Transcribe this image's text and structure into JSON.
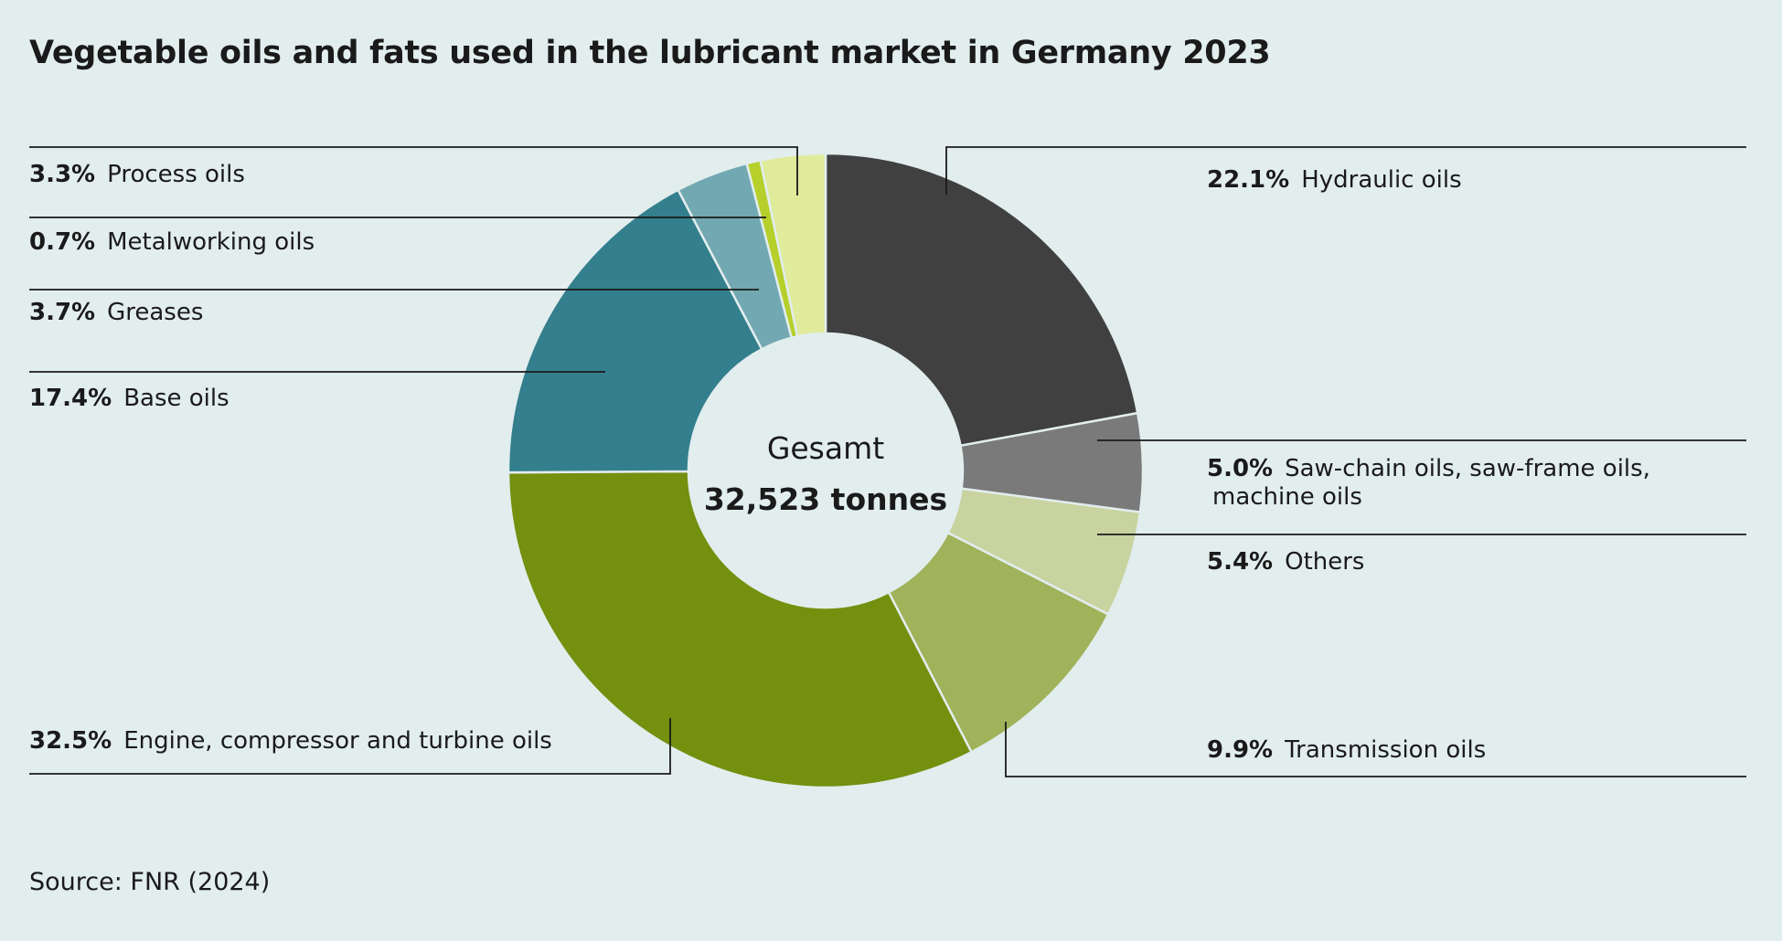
{
  "chart_data": {
    "type": "pie",
    "title": "Vegetable oils and fats used in the lubricant market in Germany 2023",
    "center_label": "Gesamt",
    "center_value": "32,523 tonnes",
    "source": "Source: FNR (2024)",
    "slices": [
      {
        "label": "Hydraulic oils",
        "pct_text": "22.1%",
        "value": 22.1,
        "color": "#404040"
      },
      {
        "label": "Saw-chain oils, saw-frame oils,",
        "label2": "machine oils",
        "pct_text": "5.0%",
        "value": 5.0,
        "color": "#7a7a7a"
      },
      {
        "label": "Others",
        "pct_text": "5.4%",
        "value": 5.4,
        "color": "#c8d3a0"
      },
      {
        "label": "Transmission oils",
        "pct_text": "9.9%",
        "value": 9.9,
        "color": "#a0b25a"
      },
      {
        "label": "Engine, compressor and turbine oils",
        "pct_text": "32.5%",
        "value": 32.5,
        "color": "#73900f"
      },
      {
        "label": "Base oils",
        "pct_text": "17.4%",
        "value": 17.4,
        "color": "#347f8d"
      },
      {
        "label": "Greases",
        "pct_text": "3.7%",
        "value": 3.7,
        "color": "#72a8b1"
      },
      {
        "label": "Metalworking oils",
        "pct_text": "0.7%",
        "value": 0.7,
        "color": "#b6cf2a"
      },
      {
        "label": "Process oils",
        "pct_text": "3.3%",
        "value": 3.3,
        "color": "#e0eb9c"
      }
    ]
  }
}
